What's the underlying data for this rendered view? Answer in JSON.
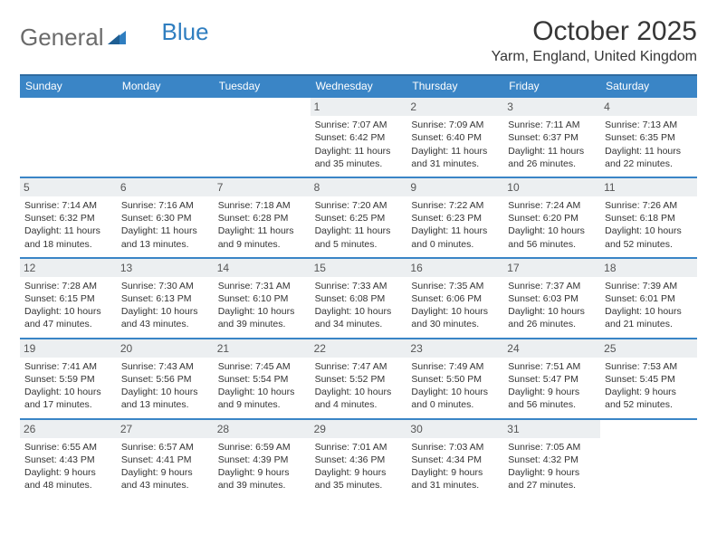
{
  "brand": {
    "part1": "General",
    "part2": "Blue"
  },
  "title": "October 2025",
  "location": "Yarm, England, United Kingdom",
  "colors": {
    "header_bg": "#3a85c6",
    "header_border": "#2e6ba0",
    "daynum_bg": "#eceff1",
    "text": "#333333",
    "brand_gray": "#6b6b6b",
    "brand_blue": "#2f7ec0"
  },
  "days_of_week": [
    "Sunday",
    "Monday",
    "Tuesday",
    "Wednesday",
    "Thursday",
    "Friday",
    "Saturday"
  ],
  "weeks": [
    [
      {
        "n": "",
        "sr": "",
        "ss": "",
        "dl1": "",
        "dl2": ""
      },
      {
        "n": "",
        "sr": "",
        "ss": "",
        "dl1": "",
        "dl2": ""
      },
      {
        "n": "",
        "sr": "",
        "ss": "",
        "dl1": "",
        "dl2": ""
      },
      {
        "n": "1",
        "sr": "Sunrise: 7:07 AM",
        "ss": "Sunset: 6:42 PM",
        "dl1": "Daylight: 11 hours",
        "dl2": "and 35 minutes."
      },
      {
        "n": "2",
        "sr": "Sunrise: 7:09 AM",
        "ss": "Sunset: 6:40 PM",
        "dl1": "Daylight: 11 hours",
        "dl2": "and 31 minutes."
      },
      {
        "n": "3",
        "sr": "Sunrise: 7:11 AM",
        "ss": "Sunset: 6:37 PM",
        "dl1": "Daylight: 11 hours",
        "dl2": "and 26 minutes."
      },
      {
        "n": "4",
        "sr": "Sunrise: 7:13 AM",
        "ss": "Sunset: 6:35 PM",
        "dl1": "Daylight: 11 hours",
        "dl2": "and 22 minutes."
      }
    ],
    [
      {
        "n": "5",
        "sr": "Sunrise: 7:14 AM",
        "ss": "Sunset: 6:32 PM",
        "dl1": "Daylight: 11 hours",
        "dl2": "and 18 minutes."
      },
      {
        "n": "6",
        "sr": "Sunrise: 7:16 AM",
        "ss": "Sunset: 6:30 PM",
        "dl1": "Daylight: 11 hours",
        "dl2": "and 13 minutes."
      },
      {
        "n": "7",
        "sr": "Sunrise: 7:18 AM",
        "ss": "Sunset: 6:28 PM",
        "dl1": "Daylight: 11 hours",
        "dl2": "and 9 minutes."
      },
      {
        "n": "8",
        "sr": "Sunrise: 7:20 AM",
        "ss": "Sunset: 6:25 PM",
        "dl1": "Daylight: 11 hours",
        "dl2": "and 5 minutes."
      },
      {
        "n": "9",
        "sr": "Sunrise: 7:22 AM",
        "ss": "Sunset: 6:23 PM",
        "dl1": "Daylight: 11 hours",
        "dl2": "and 0 minutes."
      },
      {
        "n": "10",
        "sr": "Sunrise: 7:24 AM",
        "ss": "Sunset: 6:20 PM",
        "dl1": "Daylight: 10 hours",
        "dl2": "and 56 minutes."
      },
      {
        "n": "11",
        "sr": "Sunrise: 7:26 AM",
        "ss": "Sunset: 6:18 PM",
        "dl1": "Daylight: 10 hours",
        "dl2": "and 52 minutes."
      }
    ],
    [
      {
        "n": "12",
        "sr": "Sunrise: 7:28 AM",
        "ss": "Sunset: 6:15 PM",
        "dl1": "Daylight: 10 hours",
        "dl2": "and 47 minutes."
      },
      {
        "n": "13",
        "sr": "Sunrise: 7:30 AM",
        "ss": "Sunset: 6:13 PM",
        "dl1": "Daylight: 10 hours",
        "dl2": "and 43 minutes."
      },
      {
        "n": "14",
        "sr": "Sunrise: 7:31 AM",
        "ss": "Sunset: 6:10 PM",
        "dl1": "Daylight: 10 hours",
        "dl2": "and 39 minutes."
      },
      {
        "n": "15",
        "sr": "Sunrise: 7:33 AM",
        "ss": "Sunset: 6:08 PM",
        "dl1": "Daylight: 10 hours",
        "dl2": "and 34 minutes."
      },
      {
        "n": "16",
        "sr": "Sunrise: 7:35 AM",
        "ss": "Sunset: 6:06 PM",
        "dl1": "Daylight: 10 hours",
        "dl2": "and 30 minutes."
      },
      {
        "n": "17",
        "sr": "Sunrise: 7:37 AM",
        "ss": "Sunset: 6:03 PM",
        "dl1": "Daylight: 10 hours",
        "dl2": "and 26 minutes."
      },
      {
        "n": "18",
        "sr": "Sunrise: 7:39 AM",
        "ss": "Sunset: 6:01 PM",
        "dl1": "Daylight: 10 hours",
        "dl2": "and 21 minutes."
      }
    ],
    [
      {
        "n": "19",
        "sr": "Sunrise: 7:41 AM",
        "ss": "Sunset: 5:59 PM",
        "dl1": "Daylight: 10 hours",
        "dl2": "and 17 minutes."
      },
      {
        "n": "20",
        "sr": "Sunrise: 7:43 AM",
        "ss": "Sunset: 5:56 PM",
        "dl1": "Daylight: 10 hours",
        "dl2": "and 13 minutes."
      },
      {
        "n": "21",
        "sr": "Sunrise: 7:45 AM",
        "ss": "Sunset: 5:54 PM",
        "dl1": "Daylight: 10 hours",
        "dl2": "and 9 minutes."
      },
      {
        "n": "22",
        "sr": "Sunrise: 7:47 AM",
        "ss": "Sunset: 5:52 PM",
        "dl1": "Daylight: 10 hours",
        "dl2": "and 4 minutes."
      },
      {
        "n": "23",
        "sr": "Sunrise: 7:49 AM",
        "ss": "Sunset: 5:50 PM",
        "dl1": "Daylight: 10 hours",
        "dl2": "and 0 minutes."
      },
      {
        "n": "24",
        "sr": "Sunrise: 7:51 AM",
        "ss": "Sunset: 5:47 PM",
        "dl1": "Daylight: 9 hours",
        "dl2": "and 56 minutes."
      },
      {
        "n": "25",
        "sr": "Sunrise: 7:53 AM",
        "ss": "Sunset: 5:45 PM",
        "dl1": "Daylight: 9 hours",
        "dl2": "and 52 minutes."
      }
    ],
    [
      {
        "n": "26",
        "sr": "Sunrise: 6:55 AM",
        "ss": "Sunset: 4:43 PM",
        "dl1": "Daylight: 9 hours",
        "dl2": "and 48 minutes."
      },
      {
        "n": "27",
        "sr": "Sunrise: 6:57 AM",
        "ss": "Sunset: 4:41 PM",
        "dl1": "Daylight: 9 hours",
        "dl2": "and 43 minutes."
      },
      {
        "n": "28",
        "sr": "Sunrise: 6:59 AM",
        "ss": "Sunset: 4:39 PM",
        "dl1": "Daylight: 9 hours",
        "dl2": "and 39 minutes."
      },
      {
        "n": "29",
        "sr": "Sunrise: 7:01 AM",
        "ss": "Sunset: 4:36 PM",
        "dl1": "Daylight: 9 hours",
        "dl2": "and 35 minutes."
      },
      {
        "n": "30",
        "sr": "Sunrise: 7:03 AM",
        "ss": "Sunset: 4:34 PM",
        "dl1": "Daylight: 9 hours",
        "dl2": "and 31 minutes."
      },
      {
        "n": "31",
        "sr": "Sunrise: 7:05 AM",
        "ss": "Sunset: 4:32 PM",
        "dl1": "Daylight: 9 hours",
        "dl2": "and 27 minutes."
      },
      {
        "n": "",
        "sr": "",
        "ss": "",
        "dl1": "",
        "dl2": ""
      }
    ]
  ]
}
